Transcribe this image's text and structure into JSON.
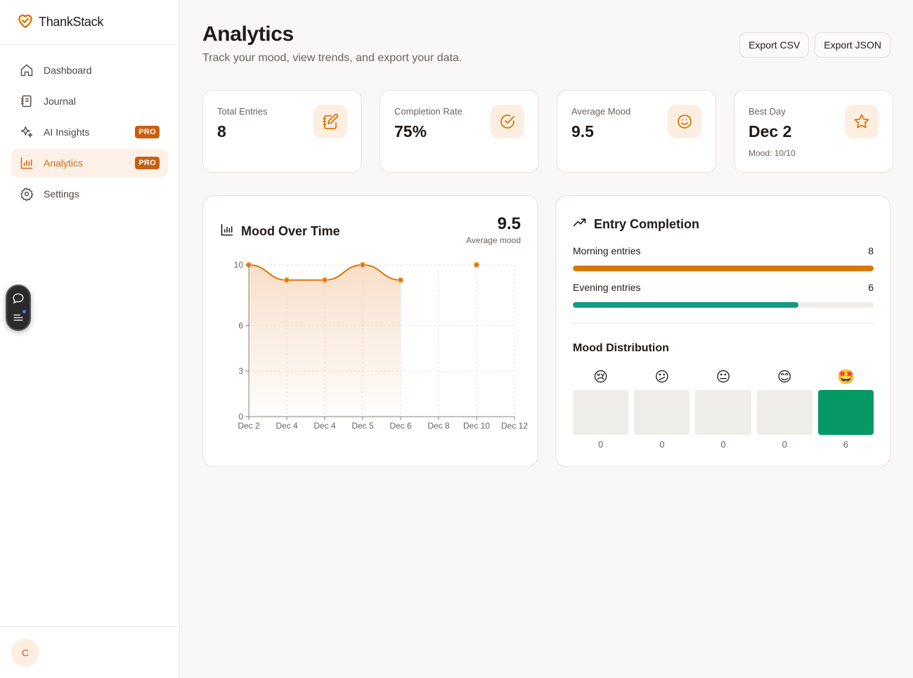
{
  "brand": {
    "name": "ThankStack"
  },
  "nav": {
    "items": [
      {
        "label": "Dashboard",
        "icon": "home-icon"
      },
      {
        "label": "Journal",
        "icon": "notebook-icon"
      },
      {
        "label": "AI Insights",
        "icon": "sparkles-icon",
        "badge": "PRO"
      },
      {
        "label": "Analytics",
        "icon": "bar-chart-icon",
        "badge": "PRO",
        "active": true
      },
      {
        "label": "Settings",
        "icon": "gear-icon"
      }
    ]
  },
  "user": {
    "initial": "C"
  },
  "header": {
    "title": "Analytics",
    "subtitle": "Track your mood, view trends, and export your data.",
    "export_csv": "Export CSV",
    "export_json": "Export JSON"
  },
  "stats": [
    {
      "label": "Total Entries",
      "value": "8",
      "icon": "notebook-pen-icon"
    },
    {
      "label": "Completion Rate",
      "value": "75%",
      "icon": "check-circle-icon"
    },
    {
      "label": "Average Mood",
      "value": "9.5",
      "icon": "smile-icon"
    },
    {
      "label": "Best Day",
      "value": "Dec 2",
      "sub": "Mood: 10/10",
      "icon": "star-icon"
    }
  ],
  "mood_chart": {
    "title": "Mood Over Time",
    "average_value": "9.5",
    "average_label": "Average mood"
  },
  "chart_data": {
    "type": "line",
    "x": [
      "Dec 2",
      "Dec 4",
      "Dec 4",
      "Dec 5",
      "Dec 6",
      "Dec 8",
      "Dec 10",
      "Dec 12"
    ],
    "series": [
      {
        "values": [
          10,
          9,
          9,
          10,
          9,
          null,
          10,
          null
        ]
      }
    ],
    "yticks": [
      0,
      3,
      6,
      10
    ],
    "ylim": [
      0,
      10
    ],
    "grid": true,
    "colors": {
      "line": "#d97706",
      "fill": "#f6d9bf"
    }
  },
  "completion": {
    "title": "Entry Completion",
    "morning_label": "Morning entries",
    "morning_value": "8",
    "morning_fraction": 1.0,
    "evening_label": "Evening entries",
    "evening_value": "6",
    "evening_fraction": 0.75,
    "colors": {
      "morning": "#d97706",
      "evening": "#159a82"
    }
  },
  "distribution": {
    "title": "Mood Distribution",
    "items": [
      {
        "emoji": "😢",
        "count": "0"
      },
      {
        "emoji": "😕",
        "count": "0"
      },
      {
        "emoji": "😐",
        "count": "0"
      },
      {
        "emoji": "😊",
        "count": "0"
      },
      {
        "emoji": "🤩",
        "count": "6"
      }
    ],
    "active_color": "#069966"
  }
}
